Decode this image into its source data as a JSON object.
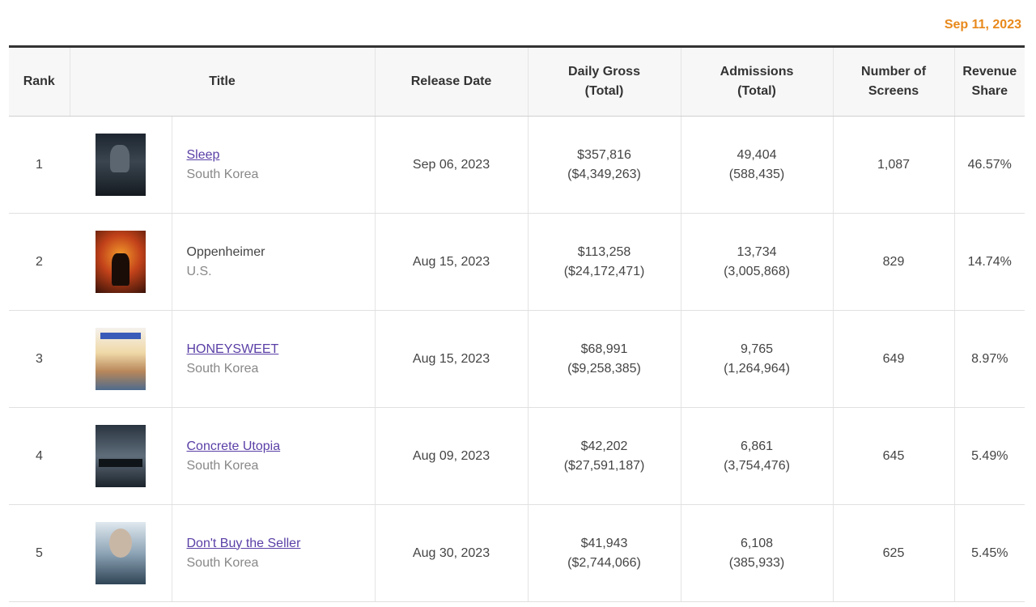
{
  "date": "Sep 11, 2023",
  "headers": {
    "rank": "Rank",
    "title": "Title",
    "release_date": "Release Date",
    "daily_gross_1": "Daily Gross",
    "daily_gross_2": "(Total)",
    "admissions_1": "Admissions",
    "admissions_2": "(Total)",
    "screens": "Number of Screens",
    "revenue_share_1": "Revenue",
    "revenue_share_2": "Share"
  },
  "rows": [
    {
      "rank": "1",
      "title": "Sleep",
      "country": "South Korea",
      "release": "Sep 06, 2023",
      "gross": "$357,816",
      "gross_total": "($4,349,263)",
      "admissions": "49,404",
      "admissions_total": "(588,435)",
      "screens": "1,087",
      "share": "46.57%"
    },
    {
      "rank": "2",
      "title": "Oppenheimer",
      "country": "U.S.",
      "release": "Aug 15, 2023",
      "gross": "$113,258",
      "gross_total": "($24,172,471)",
      "admissions": "13,734",
      "admissions_total": "(3,005,868)",
      "screens": "829",
      "share": "14.74%"
    },
    {
      "rank": "3",
      "title": "HONEYSWEET",
      "country": "South Korea",
      "release": "Aug 15, 2023",
      "gross": "$68,991",
      "gross_total": "($9,258,385)",
      "admissions": "9,765",
      "admissions_total": "(1,264,964)",
      "screens": "649",
      "share": "8.97%"
    },
    {
      "rank": "4",
      "title": "Concrete Utopia",
      "country": "South Korea",
      "release": "Aug 09, 2023",
      "gross": "$42,202",
      "gross_total": "($27,591,187)",
      "admissions": "6,861",
      "admissions_total": "(3,754,476)",
      "screens": "645",
      "share": "5.49%"
    },
    {
      "rank": "5",
      "title": "Don't Buy the Seller",
      "country": "South Korea",
      "release": "Aug 30, 2023",
      "gross": "$41,943",
      "gross_total": "($2,744,066)",
      "admissions": "6,108",
      "admissions_total": "(385,933)",
      "screens": "625",
      "share": "5.45%"
    }
  ]
}
